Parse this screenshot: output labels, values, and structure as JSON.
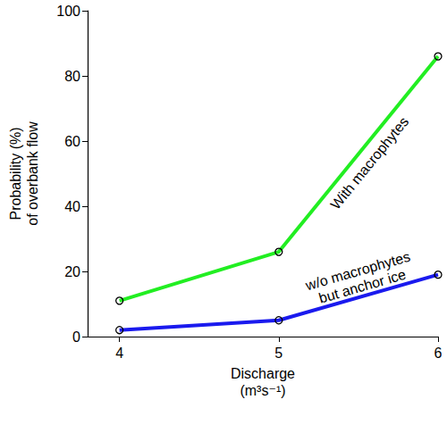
{
  "chart_data": {
    "type": "line",
    "x_label": "Discharge\n(m³s⁻¹)",
    "y_label": "Probability (%)\nof overbank flow",
    "x": [
      4,
      5,
      6
    ],
    "series": [
      {
        "name": "With macrophytes",
        "color": "#22ee22",
        "values": [
          11,
          26,
          86
        ],
        "marker": "circle"
      },
      {
        "name": "w/o macrophytes\nbut anchor ice",
        "color": "#1a1aee",
        "values": [
          2,
          5,
          19
        ],
        "marker": "circle"
      }
    ],
    "xlim": [
      3.8,
      6
    ],
    "xticks": [
      4,
      5,
      6
    ],
    "ylim": [
      0,
      100
    ],
    "yticks": [
      0,
      20,
      40,
      60,
      80,
      100
    ],
    "grid": false
  }
}
